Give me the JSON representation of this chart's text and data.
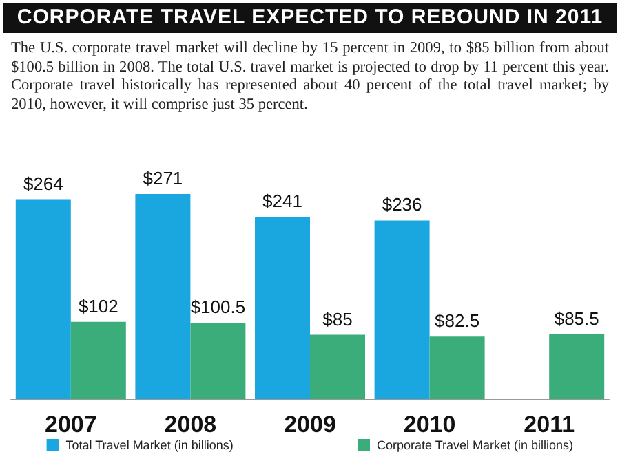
{
  "chart_data": {
    "type": "bar",
    "title": "CORPORATE TRAVEL EXPECTED TO REBOUND IN 2011",
    "subtitle": "The U.S. corporate travel market will decline by 15 percent in 2009, to $85 billion from about $100.5 billion in 2008. The total U.S. travel market is projected to drop by 11 percent this year. Corporate travel historically has represented about 40 percent of the total travel market; by 2010, however, it will comprise just 35 percent.",
    "categories": [
      "2007",
      "2008",
      "2009",
      "2010",
      "2011"
    ],
    "series": [
      {
        "name": "Total Travel Market (in billions)",
        "color": "#1aa7e0",
        "values": [
          264,
          271,
          241,
          236,
          null
        ],
        "value_labels": [
          "$264",
          "$271",
          "$241",
          "$236",
          null
        ]
      },
      {
        "name": "Corporate Travel Market (in billions)",
        "color": "#3aad7a",
        "values": [
          102,
          100.5,
          85,
          82.5,
          85.5
        ],
        "value_labels": [
          "$102",
          "$100.5",
          "$85",
          "$82.5",
          "$85.5"
        ]
      }
    ],
    "legend": "bottom"
  }
}
